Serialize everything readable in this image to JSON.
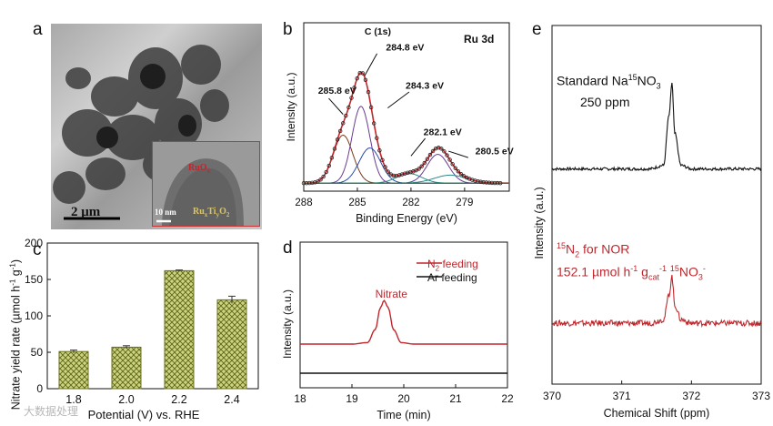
{
  "panels": {
    "a": "a",
    "b": "b",
    "c": "c",
    "d": "d",
    "e": "e"
  },
  "panel_a": {
    "scale_main": "2 μm",
    "scale_inset": "10 nm",
    "inset_label_top": "RuO",
    "inset_label_top_sub": "x",
    "inset_label_bottom_parts": [
      "Ru",
      "x",
      "Ti",
      "y",
      "O",
      "2"
    ]
  },
  "colors": {
    "bar_fill": "#c8d27e",
    "bar_stroke": "#6b6f1d",
    "red": "#c0272d",
    "black": "#111111",
    "fit_purple": "#6a3a92",
    "fit_blue": "#2b4aa8",
    "fit_teal": "#2a8a8a",
    "fit_brown": "#7a3a1a"
  },
  "chart_data": [
    {
      "id": "b",
      "type": "line",
      "title": "Ru 3d",
      "xlabel": "Binding Energy (eV)",
      "ylabel": "Intensity (a.u.)",
      "xlim": [
        288,
        276.5
      ],
      "x_ticks": [
        288,
        285,
        282,
        279
      ],
      "annotations": [
        {
          "text": "C (1s)",
          "x": 284.6,
          "y": 0.98
        },
        {
          "text": "284.8 eV",
          "x": 283.4,
          "y": 0.88
        },
        {
          "text": "285.8 eV",
          "x": 287.2,
          "y": 0.61
        },
        {
          "text": "284.3 eV",
          "x": 282.3,
          "y": 0.64
        },
        {
          "text": "282.1 eV",
          "x": 281.3,
          "y": 0.35
        },
        {
          "text": "280.5 eV",
          "x": 278.4,
          "y": 0.23
        }
      ],
      "series": [
        {
          "name": "experimental",
          "x": [
            288,
            287.5,
            287,
            286.5,
            286,
            285.6,
            285.3,
            285.1,
            284.9,
            284.7,
            284.4,
            284,
            283.5,
            283,
            282.5,
            282,
            281.5,
            281,
            280.6,
            280.2,
            279.8,
            279.2,
            278.5,
            278,
            277.5,
            277
          ],
          "values": [
            0.06,
            0.07,
            0.1,
            0.18,
            0.32,
            0.55,
            0.78,
            0.9,
            0.92,
            0.86,
            0.72,
            0.5,
            0.35,
            0.24,
            0.18,
            0.16,
            0.18,
            0.22,
            0.25,
            0.24,
            0.18,
            0.1,
            0.06,
            0.05,
            0.05,
            0.05
          ]
        }
      ]
    },
    {
      "id": "c",
      "type": "bar",
      "xlabel": "Potential (V) vs. RHE",
      "ylabel": "Nitrate yield rate (µmol h⁻¹ g⁻¹)",
      "categories": [
        "1.8",
        "2.0",
        "2.2",
        "2.4"
      ],
      "values": [
        51,
        57,
        162,
        122
      ],
      "errors": [
        2,
        2,
        1,
        5
      ],
      "ylim": [
        0,
        200
      ],
      "y_ticks": [
        0,
        50,
        100,
        150,
        200
      ]
    },
    {
      "id": "d",
      "type": "line",
      "xlabel": "Time (min)",
      "ylabel": "Intensity (a.u.)",
      "xlim": [
        18,
        22
      ],
      "x_ticks": [
        18,
        19,
        20,
        21,
        22
      ],
      "annotations": [
        {
          "text": "Nitrate",
          "x": 19.45,
          "y": 0.62
        }
      ],
      "legend": [
        "N₂ feeding",
        "Ar feeding"
      ],
      "series": [
        {
          "name": "N2 feeding",
          "x": [
            18,
            18.5,
            19,
            19.3,
            19.45,
            19.55,
            19.62,
            19.7,
            19.8,
            19.95,
            20.2,
            20.6,
            21,
            21.5,
            22
          ],
          "values": [
            0.3,
            0.3,
            0.3,
            0.31,
            0.4,
            0.55,
            0.6,
            0.55,
            0.4,
            0.31,
            0.3,
            0.3,
            0.3,
            0.3,
            0.3
          ]
        },
        {
          "name": "Ar feeding",
          "x": [
            18,
            19,
            20,
            21,
            22
          ],
          "values": [
            0.1,
            0.1,
            0.1,
            0.1,
            0.1
          ]
        }
      ]
    },
    {
      "id": "e",
      "type": "line",
      "xlabel": "Chemical Shift (ppm)",
      "ylabel": "Intensity (a.u.)",
      "xlim": [
        370,
        373
      ],
      "x_ticks": [
        370,
        371,
        372,
        373
      ],
      "annotations": [
        {
          "text": "Standard Na¹⁵NO₃",
          "x": 370.5,
          "y": 0.9
        },
        {
          "text": "250 ppm",
          "x": 370.8,
          "y": 0.8
        },
        {
          "text": "¹⁵N₂ for NOR",
          "x": 370.3,
          "y": 0.47
        },
        {
          "text": "152.1 µmol h⁻¹ g꜀ₐₜ⁻¹ ¹⁵NO₃⁻",
          "x": 370.3,
          "y": 0.37
        }
      ],
      "series": [
        {
          "name": "Standard Na15NO3",
          "x": [
            370,
            370.5,
            371,
            371.4,
            371.6,
            371.68,
            371.72,
            371.76,
            371.85,
            372,
            372.5,
            373
          ],
          "values": [
            0.6,
            0.6,
            0.6,
            0.6,
            0.61,
            0.75,
            0.84,
            0.7,
            0.61,
            0.6,
            0.6,
            0.6
          ]
        },
        {
          "name": "15N2 for NOR",
          "x": [
            370,
            370.5,
            371,
            371.4,
            371.6,
            371.68,
            371.72,
            371.76,
            371.85,
            372,
            372.5,
            373
          ],
          "values": [
            0.17,
            0.17,
            0.17,
            0.17,
            0.18,
            0.25,
            0.3,
            0.22,
            0.18,
            0.17,
            0.17,
            0.17
          ]
        }
      ]
    }
  ],
  "labels_text": {
    "c_ylabel_parts": [
      "Nitrate yield rate (",
      "µ",
      "mol h",
      "-1",
      " g",
      "-1",
      ")"
    ],
    "d_legend_n2_parts": [
      "N",
      "2",
      " feeding"
    ],
    "d_legend_ar": "Ar feeding",
    "e_standard_parts": [
      "Standard Na",
      "15",
      "NO",
      "3"
    ],
    "e_nor_parts": [
      "15",
      "N",
      "2",
      " for NOR"
    ],
    "e_rate_parts": [
      "152.1 ",
      "µ",
      "mol h",
      "-1",
      " g",
      "cat",
      "-1",
      " ",
      "15",
      "NO",
      "3",
      "-"
    ],
    "watermark": "大数据处理"
  }
}
